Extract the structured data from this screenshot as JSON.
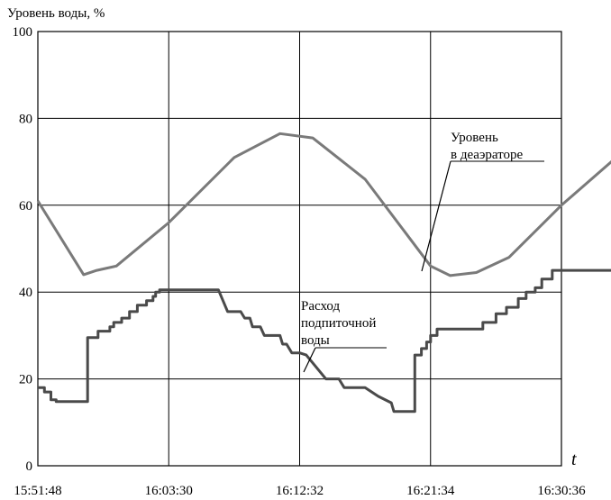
{
  "chart_data": {
    "type": "line",
    "title": "",
    "ylabel": "Уровень воды, %",
    "xlabel": "t",
    "ylim": [
      0,
      100
    ],
    "yticks": [
      "0",
      "20",
      "40",
      "60",
      "80",
      "100"
    ],
    "xticks": [
      "15:51:48",
      "16:03:30",
      "16:12:32",
      "16:21:34",
      "16:30:36"
    ],
    "grid": true,
    "series": [
      {
        "name": "Уровень в деаэраторе",
        "color": "#7a7a7a",
        "points": [
          [
            0,
            61
          ],
          [
            0.35,
            44
          ],
          [
            0.45,
            45
          ],
          [
            0.6,
            46
          ],
          [
            1.0,
            56
          ],
          [
            1.5,
            71
          ],
          [
            1.85,
            76.5
          ],
          [
            2.1,
            75.5
          ],
          [
            2.5,
            66
          ],
          [
            2.8,
            54
          ],
          [
            3.0,
            46
          ],
          [
            3.15,
            43.8
          ],
          [
            3.35,
            44.5
          ],
          [
            3.6,
            48
          ],
          [
            4.0,
            60
          ],
          [
            4.4,
            70.5
          ]
        ]
      },
      {
        "name": "Расход подпиточной воды",
        "color": "#4a4a4a",
        "points": [
          [
            0,
            18
          ],
          [
            0.05,
            18
          ],
          [
            0.05,
            17
          ],
          [
            0.1,
            17
          ],
          [
            0.1,
            15.2
          ],
          [
            0.14,
            15.2
          ],
          [
            0.14,
            14.8
          ],
          [
            0.38,
            14.8
          ],
          [
            0.38,
            29.5
          ],
          [
            0.46,
            29.5
          ],
          [
            0.46,
            31
          ],
          [
            0.55,
            31
          ],
          [
            0.55,
            32
          ],
          [
            0.58,
            32
          ],
          [
            0.58,
            33
          ],
          [
            0.64,
            33
          ],
          [
            0.64,
            34
          ],
          [
            0.7,
            34
          ],
          [
            0.7,
            35.5
          ],
          [
            0.76,
            35.5
          ],
          [
            0.76,
            37
          ],
          [
            0.83,
            37
          ],
          [
            0.83,
            38
          ],
          [
            0.88,
            38
          ],
          [
            0.88,
            39
          ],
          [
            0.9,
            39
          ],
          [
            0.9,
            40
          ],
          [
            0.93,
            40
          ],
          [
            0.93,
            40.5
          ],
          [
            1.38,
            40.5
          ],
          [
            1.45,
            35.5
          ],
          [
            1.55,
            35.5
          ],
          [
            1.58,
            34
          ],
          [
            1.62,
            34
          ],
          [
            1.64,
            32
          ],
          [
            1.7,
            32
          ],
          [
            1.73,
            30
          ],
          [
            1.85,
            30
          ],
          [
            1.87,
            28
          ],
          [
            1.9,
            28
          ],
          [
            1.94,
            26
          ],
          [
            2.0,
            26
          ],
          [
            2.05,
            25.5
          ],
          [
            2.2,
            20
          ],
          [
            2.3,
            20
          ],
          [
            2.34,
            18
          ],
          [
            2.5,
            18
          ],
          [
            2.6,
            16
          ],
          [
            2.7,
            14.5
          ],
          [
            2.72,
            12.5
          ],
          [
            2.88,
            12.5
          ],
          [
            2.88,
            25.5
          ],
          [
            2.93,
            25.5
          ],
          [
            2.93,
            27
          ],
          [
            2.97,
            27
          ],
          [
            2.97,
            28.5
          ],
          [
            3.0,
            28.5
          ],
          [
            3.0,
            30
          ],
          [
            3.05,
            30
          ],
          [
            3.05,
            31.5
          ],
          [
            3.4,
            31.5
          ],
          [
            3.4,
            33
          ],
          [
            3.5,
            33
          ],
          [
            3.5,
            35
          ],
          [
            3.58,
            35
          ],
          [
            3.58,
            36.5
          ],
          [
            3.67,
            36.5
          ],
          [
            3.67,
            38.5
          ],
          [
            3.73,
            38.5
          ],
          [
            3.73,
            40
          ],
          [
            3.8,
            40
          ],
          [
            3.8,
            41
          ],
          [
            3.85,
            41
          ],
          [
            3.85,
            43
          ],
          [
            3.93,
            43
          ],
          [
            3.93,
            45
          ],
          [
            4.4,
            45
          ]
        ]
      }
    ],
    "annotations": {
      "level": [
        "Уровень",
        "в деаэраторе"
      ],
      "flow": [
        "Расход",
        "подпиточной",
        "воды"
      ]
    }
  }
}
